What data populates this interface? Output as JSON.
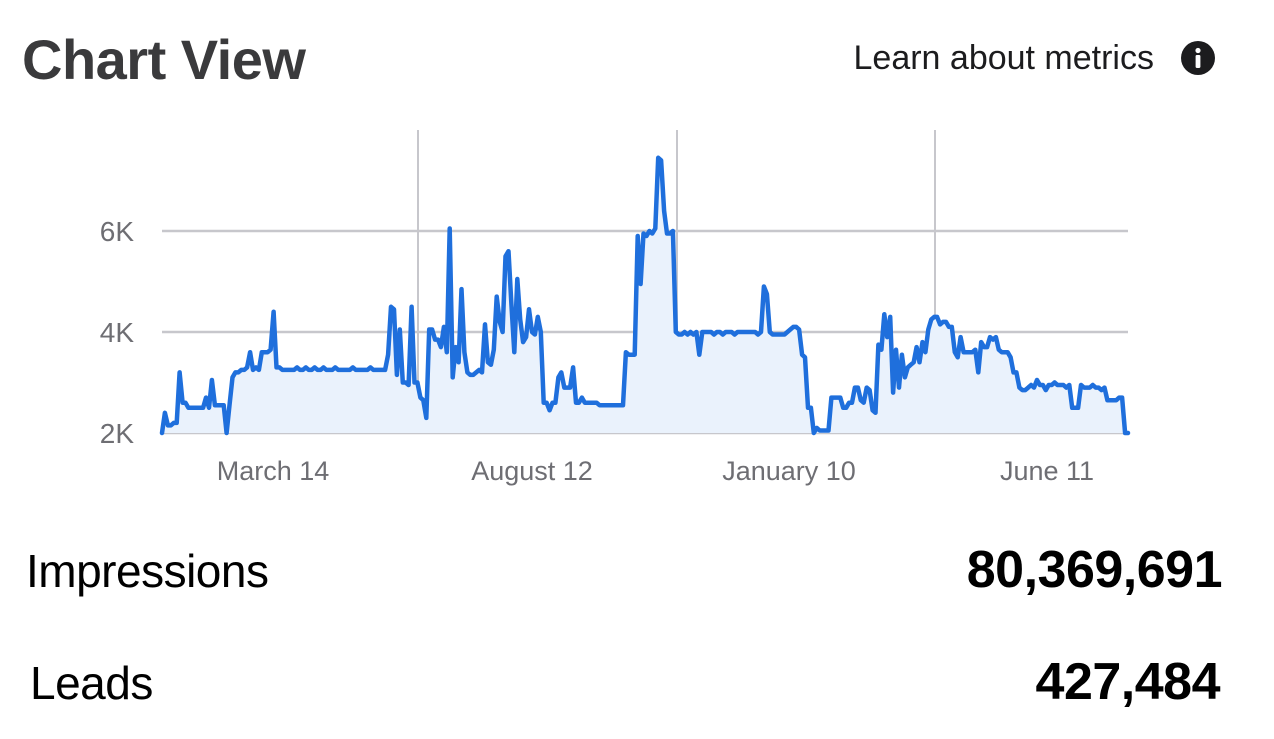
{
  "header": {
    "title": "Chart View",
    "learn_link": "Learn about metrics",
    "info_icon": "info-circle-icon"
  },
  "metrics": [
    {
      "label": "Impressions",
      "value": "80,369,691"
    },
    {
      "label": "Leads",
      "value": "427,484"
    }
  ],
  "colors": {
    "line": "#1f6fdc",
    "fill": "#eaf2fc",
    "grid": "#c7c7cc",
    "tick": "#6e6e73"
  },
  "chart_data": {
    "type": "area",
    "title": "",
    "xlabel": "",
    "ylabel": "",
    "ylim": [
      2000,
      8000
    ],
    "y_ticks": [
      {
        "value": 2000,
        "label": "2K"
      },
      {
        "value": 4000,
        "label": "4K"
      },
      {
        "value": 6000,
        "label": "6K"
      }
    ],
    "x_tick_labels": [
      "March 14",
      "August 12",
      "January 10",
      "June 11"
    ],
    "grid": true,
    "series": [
      {
        "values": [
          2000,
          2400,
          2150,
          2150,
          2200,
          2200,
          3200,
          2600,
          2600,
          2500,
          2500,
          2500,
          2500,
          2500,
          2500,
          2700,
          2500,
          3050,
          2550,
          2550,
          2550,
          2550,
          2000,
          2550,
          3100,
          3200,
          3200,
          3250,
          3250,
          3300,
          3600,
          3250,
          3300,
          3250,
          3600,
          3600,
          3600,
          3650,
          4400,
          3300,
          3300,
          3250,
          3250,
          3250,
          3250,
          3250,
          3300,
          3250,
          3250,
          3300,
          3250,
          3250,
          3300,
          3250,
          3250,
          3300,
          3250,
          3250,
          3250,
          3300,
          3250,
          3250,
          3250,
          3250,
          3250,
          3300,
          3250,
          3250,
          3250,
          3250,
          3250,
          3300,
          3250,
          3250,
          3250,
          3250,
          3250,
          3550,
          4500,
          4450,
          3150,
          4050,
          3000,
          3000,
          2950,
          4500,
          3000,
          3000,
          2700,
          2650,
          2300,
          4050,
          4050,
          3850,
          3850,
          3700,
          4100,
          3600,
          6050,
          3100,
          3700,
          3400,
          4850,
          3600,
          3200,
          3150,
          3150,
          3200,
          3250,
          3200,
          4150,
          3400,
          3350,
          3650,
          4700,
          4200,
          4000,
          5500,
          5600,
          4550,
          3600,
          5050,
          4250,
          3800,
          3900,
          4450,
          4000,
          3950,
          4300,
          4000,
          2600,
          2600,
          2450,
          2600,
          2600,
          3100,
          3200,
          2900,
          2900,
          2900,
          3300,
          2600,
          2600,
          2700,
          2600,
          2600,
          2600,
          2600,
          2600,
          2550,
          2550,
          2550,
          2550,
          2550,
          2550,
          2550,
          2550,
          2550,
          3600,
          3550,
          3550,
          3550,
          5900,
          4950,
          5950,
          5900,
          6000,
          5950,
          6050,
          7450,
          7400,
          6400,
          5950,
          5950,
          6000,
          4000,
          3950,
          3950,
          4000,
          3950,
          4000,
          3950,
          4000,
          3550,
          4000,
          4000,
          4000,
          4000,
          3950,
          4000,
          4000,
          3950,
          4000,
          4000,
          4000,
          3950,
          4000,
          4000,
          4000,
          4000,
          4000,
          4000,
          4000,
          3950,
          4000,
          4900,
          4750,
          4000,
          3950,
          3950,
          3950,
          3950,
          3950,
          4000,
          4050,
          4100,
          4100,
          4050,
          3550,
          3500,
          2500,
          2500,
          2000,
          2100,
          2050,
          2050,
          2050,
          2050,
          2700,
          2700,
          2700,
          2700,
          2500,
          2500,
          2600,
          2600,
          2900,
          2900,
          2650,
          2600,
          2900,
          2850,
          2450,
          2400,
          3750,
          3650,
          4350,
          3900,
          4300,
          2800,
          3650,
          2900,
          3550,
          3100,
          3300,
          3350,
          3400,
          3700,
          3400,
          3800,
          3600,
          4050,
          4250,
          4300,
          4300,
          4150,
          4200,
          4200,
          4100,
          4100,
          3600,
          3500,
          3900,
          3600,
          3600,
          3600,
          3600,
          3650,
          3200,
          3800,
          3700,
          3700,
          3900,
          3850,
          3900,
          3650,
          3600,
          3600,
          3600,
          3500,
          3200,
          3200,
          2900,
          2850,
          2850,
          2900,
          2950,
          2900,
          3050,
          2950,
          2950,
          2850,
          2950,
          2950,
          3000,
          2950,
          2950,
          2950,
          2900,
          2950,
          2500,
          2500,
          2500,
          2950,
          2900,
          2900,
          2900,
          2950,
          2900,
          2900,
          2850,
          2900,
          2650,
          2650,
          2650,
          2650,
          2700,
          2700,
          2000,
          2000
        ]
      }
    ]
  }
}
